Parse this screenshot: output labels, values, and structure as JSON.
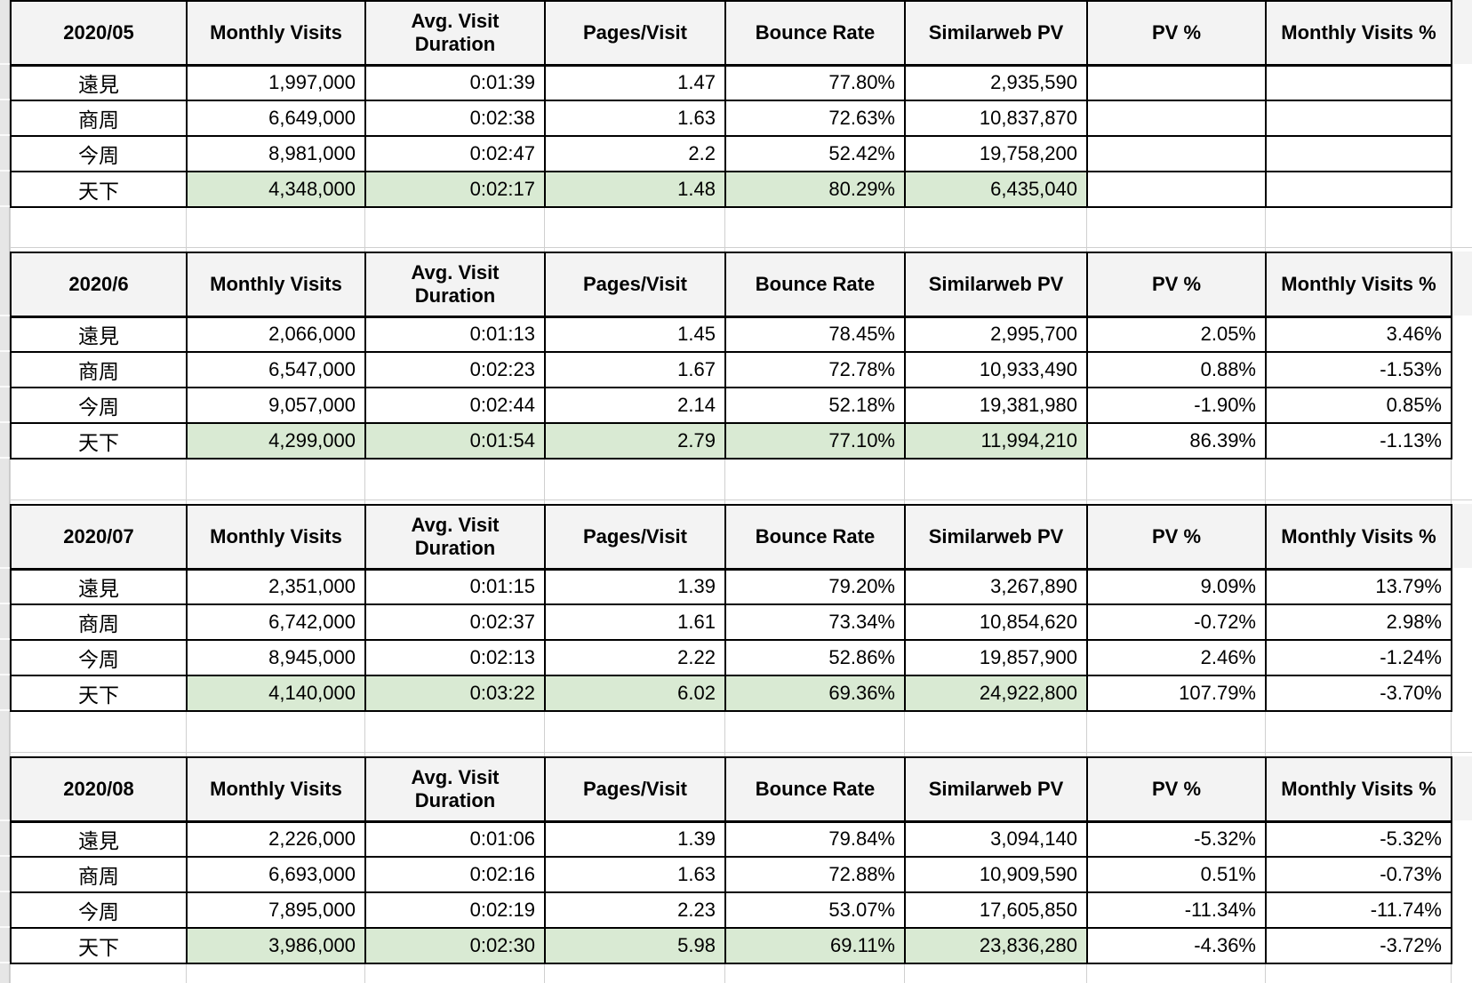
{
  "colors": {
    "header_bg": "#f3f3f3",
    "highlight_green": "#d9ead3",
    "table_border": "#000000",
    "gridline": "#d0d0d0",
    "gutter_bg": "#e6e6e6"
  },
  "column_headers": [
    "Monthly Visits",
    "Avg. Visit Duration",
    "Pages/Visit",
    "Bounce Rate",
    "Similarweb PV",
    "PV %",
    "Monthly Visits %"
  ],
  "tables": [
    {
      "month": "2020/05",
      "rows": [
        {
          "site": "遠見",
          "highlight": false,
          "values": [
            "1,997,000",
            "0:01:39",
            "1.47",
            "77.80%",
            "2,935,590",
            "",
            ""
          ]
        },
        {
          "site": "商周",
          "highlight": false,
          "values": [
            "6,649,000",
            "0:02:38",
            "1.63",
            "72.63%",
            "10,837,870",
            "",
            ""
          ]
        },
        {
          "site": "今周",
          "highlight": false,
          "values": [
            "8,981,000",
            "0:02:47",
            "2.2",
            "52.42%",
            "19,758,200",
            "",
            ""
          ]
        },
        {
          "site": "天下",
          "highlight": true,
          "values": [
            "4,348,000",
            "0:02:17",
            "1.48",
            "80.29%",
            "6,435,040",
            "",
            ""
          ]
        }
      ]
    },
    {
      "month": "2020/6",
      "rows": [
        {
          "site": "遠見",
          "highlight": false,
          "values": [
            "2,066,000",
            "0:01:13",
            "1.45",
            "78.45%",
            "2,995,700",
            "2.05%",
            "3.46%"
          ]
        },
        {
          "site": "商周",
          "highlight": false,
          "values": [
            "6,547,000",
            "0:02:23",
            "1.67",
            "72.78%",
            "10,933,490",
            "0.88%",
            "-1.53%"
          ]
        },
        {
          "site": "今周",
          "highlight": false,
          "values": [
            "9,057,000",
            "0:02:44",
            "2.14",
            "52.18%",
            "19,381,980",
            "-1.90%",
            "0.85%"
          ]
        },
        {
          "site": "天下",
          "highlight": true,
          "values": [
            "4,299,000",
            "0:01:54",
            "2.79",
            "77.10%",
            "11,994,210",
            "86.39%",
            "-1.13%"
          ]
        }
      ]
    },
    {
      "month": "2020/07",
      "rows": [
        {
          "site": "遠見",
          "highlight": false,
          "values": [
            "2,351,000",
            "0:01:15",
            "1.39",
            "79.20%",
            "3,267,890",
            "9.09%",
            "13.79%"
          ]
        },
        {
          "site": "商周",
          "highlight": false,
          "values": [
            "6,742,000",
            "0:02:37",
            "1.61",
            "73.34%",
            "10,854,620",
            "-0.72%",
            "2.98%"
          ]
        },
        {
          "site": "今周",
          "highlight": false,
          "values": [
            "8,945,000",
            "0:02:13",
            "2.22",
            "52.86%",
            "19,857,900",
            "2.46%",
            "-1.24%"
          ]
        },
        {
          "site": "天下",
          "highlight": true,
          "values": [
            "4,140,000",
            "0:03:22",
            "6.02",
            "69.36%",
            "24,922,800",
            "107.79%",
            "-3.70%"
          ]
        }
      ]
    },
    {
      "month": "2020/08",
      "rows": [
        {
          "site": "遠見",
          "highlight": false,
          "values": [
            "2,226,000",
            "0:01:06",
            "1.39",
            "79.84%",
            "3,094,140",
            "-5.32%",
            "-5.32%"
          ]
        },
        {
          "site": "商周",
          "highlight": false,
          "values": [
            "6,693,000",
            "0:02:16",
            "1.63",
            "72.88%",
            "10,909,590",
            "0.51%",
            "-0.73%"
          ]
        },
        {
          "site": "今周",
          "highlight": false,
          "values": [
            "7,895,000",
            "0:02:19",
            "2.23",
            "53.07%",
            "17,605,850",
            "-11.34%",
            "-11.74%"
          ]
        },
        {
          "site": "天下",
          "highlight": true,
          "values": [
            "3,986,000",
            "0:02:30",
            "5.98",
            "69.11%",
            "23,836,280",
            "-4.36%",
            "-3.72%"
          ]
        }
      ]
    }
  ]
}
